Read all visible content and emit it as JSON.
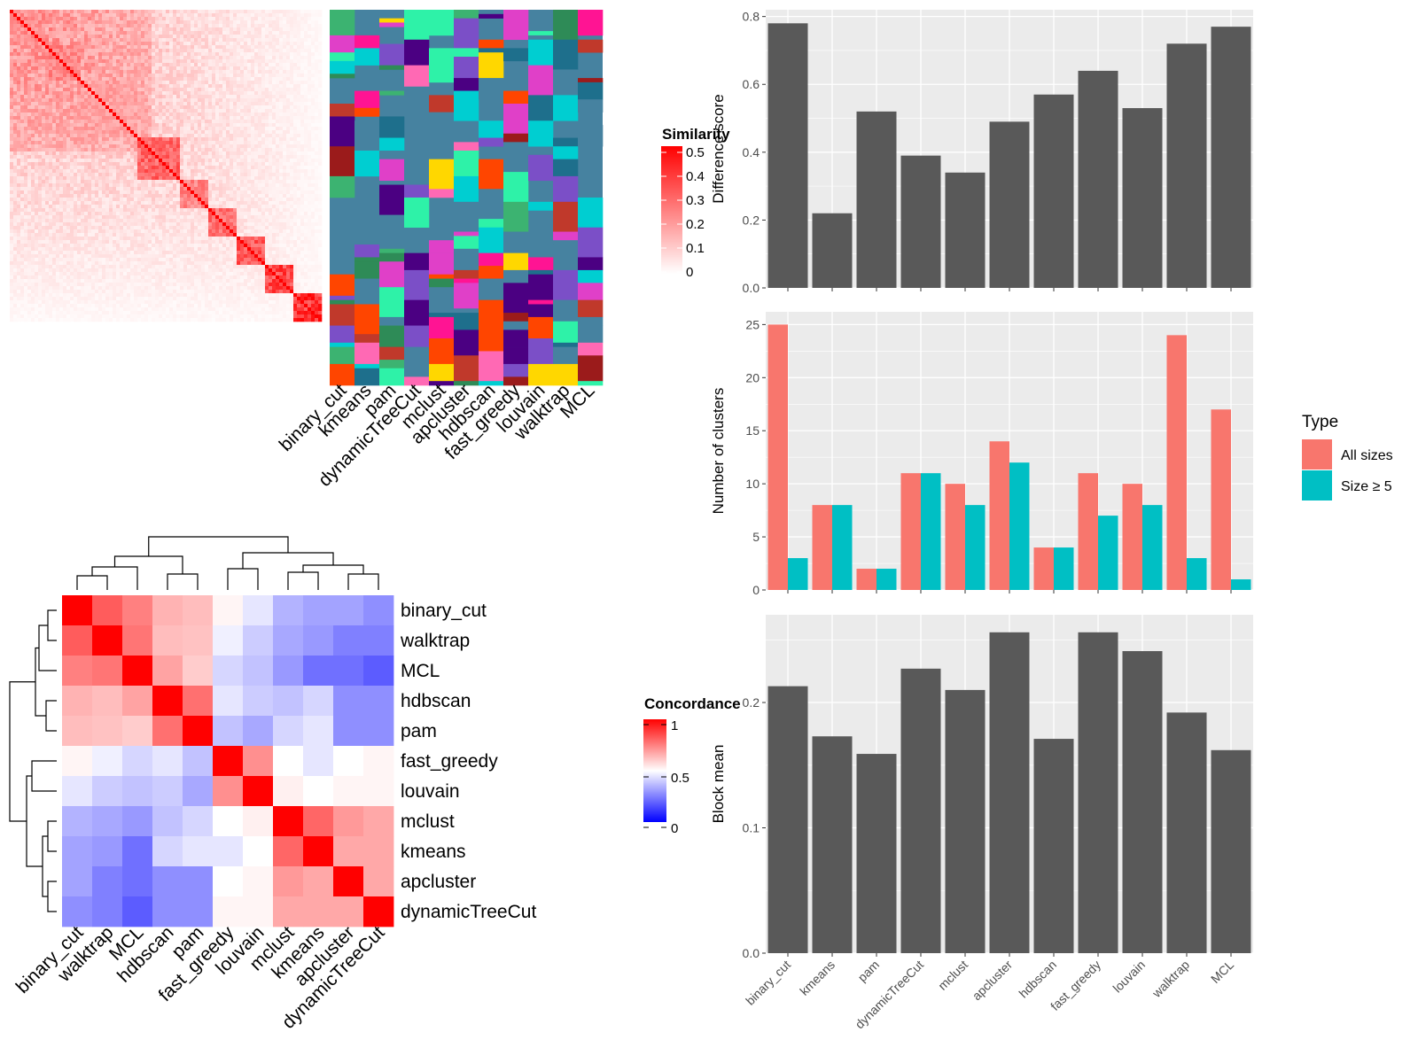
{
  "methods": [
    "binary_cut",
    "kmeans",
    "pam",
    "dynamicTreeCut",
    "mclust",
    "apcluster",
    "hdbscan",
    "fast_greedy",
    "louvain",
    "walktrap",
    "MCL"
  ],
  "colors": {
    "bar_gray": "#595959",
    "panel_bg": "#ebebeb",
    "grid": "#ffffff",
    "all_sizes": "#F8766D",
    "size_ge5": "#00BFC4",
    "sim_high": "#ff0000",
    "conc_low": "#0000ff",
    "cluster_bg": "#4682a0",
    "cluster_palette": [
      "#2ef2a8",
      "#c0392b",
      "#e040c8",
      "#ff69b4",
      "#7b4fc7",
      "#1e6f8c",
      "#4b0082",
      "#9b1b1b",
      "#ff1493",
      "#3cb371",
      "#ffd700",
      "#ff4500",
      "#2e8b57",
      "#00ced1"
    ]
  },
  "similarity_panel": {
    "legend_title": "Similarity",
    "legend_ticks": [
      "0.5",
      "0.4",
      "0.3",
      "0.2",
      "0.1",
      "0"
    ]
  },
  "concordance_panel": {
    "legend_title": "Concordance",
    "legend_ticks": [
      "1",
      "0.5",
      "0"
    ],
    "order": [
      "binary_cut",
      "walktrap",
      "MCL",
      "hdbscan",
      "pam",
      "fast_greedy",
      "louvain",
      "mclust",
      "kmeans",
      "apcluster",
      "dynamicTreeCut"
    ],
    "matrix": [
      [
        1.0,
        0.82,
        0.75,
        0.65,
        0.63,
        0.52,
        0.45,
        0.35,
        0.32,
        0.32,
        0.28
      ],
      [
        0.82,
        1.0,
        0.77,
        0.63,
        0.62,
        0.47,
        0.4,
        0.33,
        0.3,
        0.25,
        0.25
      ],
      [
        0.75,
        0.77,
        1.0,
        0.68,
        0.6,
        0.42,
        0.38,
        0.3,
        0.22,
        0.22,
        0.18
      ],
      [
        0.65,
        0.63,
        0.68,
        1.0,
        0.78,
        0.45,
        0.4,
        0.38,
        0.42,
        0.28,
        0.28
      ],
      [
        0.63,
        0.62,
        0.6,
        0.78,
        1.0,
        0.38,
        0.33,
        0.42,
        0.45,
        0.28,
        0.28
      ],
      [
        0.52,
        0.47,
        0.42,
        0.45,
        0.38,
        1.0,
        0.72,
        0.5,
        0.45,
        0.5,
        0.52
      ],
      [
        0.45,
        0.4,
        0.38,
        0.4,
        0.33,
        0.72,
        1.0,
        0.53,
        0.5,
        0.52,
        0.52
      ],
      [
        0.35,
        0.33,
        0.3,
        0.38,
        0.42,
        0.5,
        0.53,
        1.0,
        0.8,
        0.7,
        0.67
      ],
      [
        0.32,
        0.3,
        0.22,
        0.42,
        0.45,
        0.45,
        0.5,
        0.8,
        1.0,
        0.67,
        0.67
      ],
      [
        0.32,
        0.25,
        0.22,
        0.28,
        0.28,
        0.5,
        0.52,
        0.7,
        0.67,
        1.0,
        0.67
      ],
      [
        0.28,
        0.25,
        0.18,
        0.28,
        0.28,
        0.52,
        0.52,
        0.67,
        0.67,
        0.67,
        1.0
      ]
    ]
  },
  "chart_data": [
    {
      "type": "bar",
      "categories": [
        "binary_cut",
        "kmeans",
        "pam",
        "dynamicTreeCut",
        "mclust",
        "apcluster",
        "hdbscan",
        "fast_greedy",
        "louvain",
        "walktrap",
        "MCL"
      ],
      "values": [
        0.78,
        0.22,
        0.52,
        0.39,
        0.34,
        0.49,
        0.57,
        0.64,
        0.53,
        0.72,
        0.77
      ],
      "ylabel": "Difference score",
      "ylim": [
        0,
        0.82
      ],
      "yticks": [
        "0.0",
        "0.2",
        "0.4",
        "0.6",
        "0.8"
      ],
      "ytick_values": [
        0,
        0.2,
        0.4,
        0.6,
        0.8
      ]
    },
    {
      "type": "bar",
      "categories": [
        "binary_cut",
        "kmeans",
        "pam",
        "dynamicTreeCut",
        "mclust",
        "apcluster",
        "hdbscan",
        "fast_greedy",
        "louvain",
        "walktrap",
        "MCL"
      ],
      "series": [
        {
          "name": "All sizes",
          "values": [
            25,
            8,
            2,
            11,
            10,
            14,
            4,
            11,
            10,
            24,
            17
          ]
        },
        {
          "name": "Size ≥ 5",
          "values": [
            3,
            8,
            2,
            11,
            8,
            12,
            4,
            7,
            8,
            3,
            1
          ]
        }
      ],
      "ylabel": "Number of clusters",
      "ylim": [
        0,
        26.2
      ],
      "yticks": [
        "0",
        "5",
        "10",
        "15",
        "20",
        "25"
      ],
      "ytick_values": [
        0,
        5,
        10,
        15,
        20,
        25
      ],
      "legend_title": "Type",
      "legend_position": "right"
    },
    {
      "type": "bar",
      "categories": [
        "binary_cut",
        "kmeans",
        "pam",
        "dynamicTreeCut",
        "mclust",
        "apcluster",
        "hdbscan",
        "fast_greedy",
        "louvain",
        "walktrap",
        "MCL"
      ],
      "values": [
        0.213,
        0.173,
        0.159,
        0.227,
        0.21,
        0.256,
        0.171,
        0.256,
        0.241,
        0.192,
        0.162
      ],
      "ylabel": "Block mean",
      "ylim": [
        0,
        0.27
      ],
      "yticks": [
        "0.0",
        "0.1",
        "0.2"
      ],
      "ytick_values": [
        0,
        0.1,
        0.2
      ]
    }
  ]
}
